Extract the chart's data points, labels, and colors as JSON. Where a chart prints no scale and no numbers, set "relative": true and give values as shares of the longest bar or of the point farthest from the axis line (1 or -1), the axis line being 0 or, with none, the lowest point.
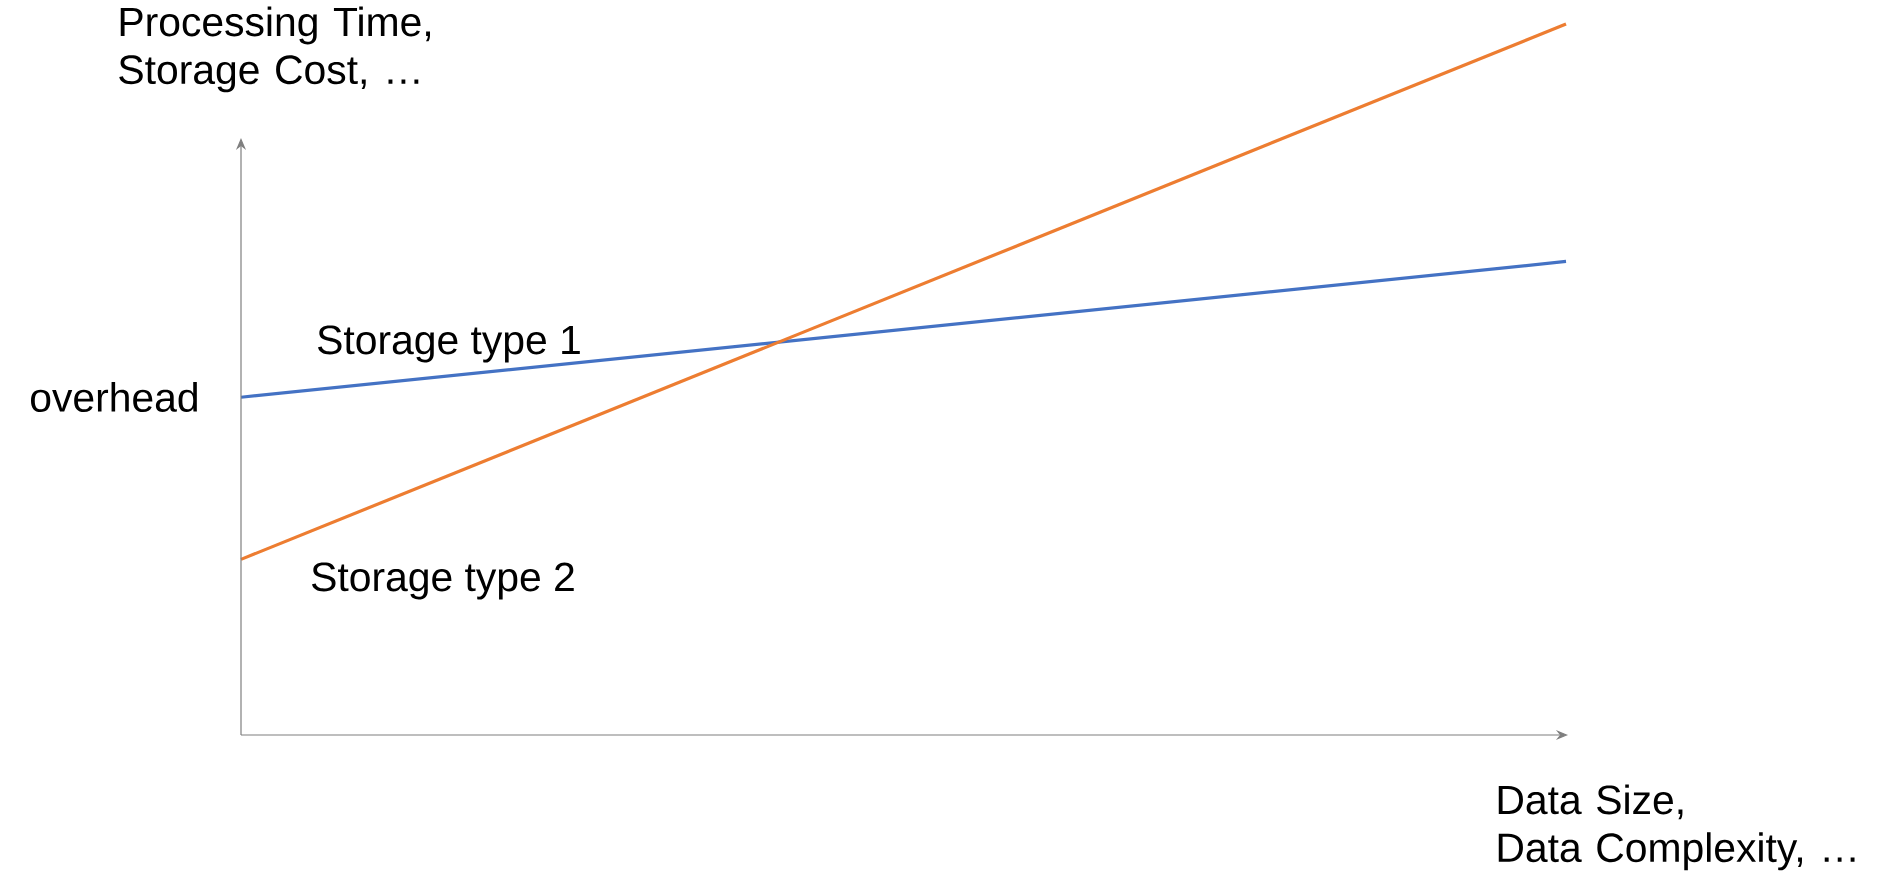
{
  "chart_data": {
    "type": "line",
    "relative": true,
    "categories": [
      null,
      null
    ],
    "xlabel": "Data Size,\nData Complexity, …",
    "ylabel": "Processing Time,\nStorage Cost, …",
    "series": [
      {
        "name": "Storage type 1",
        "color": "#4472c4",
        "values": [
          0.475,
          0.666
        ]
      },
      {
        "name": "Storage type 2",
        "color": "#ed7d31",
        "values": [
          0.247,
          1
        ]
      }
    ],
    "annotations": [
      "overhead"
    ]
  }
}
